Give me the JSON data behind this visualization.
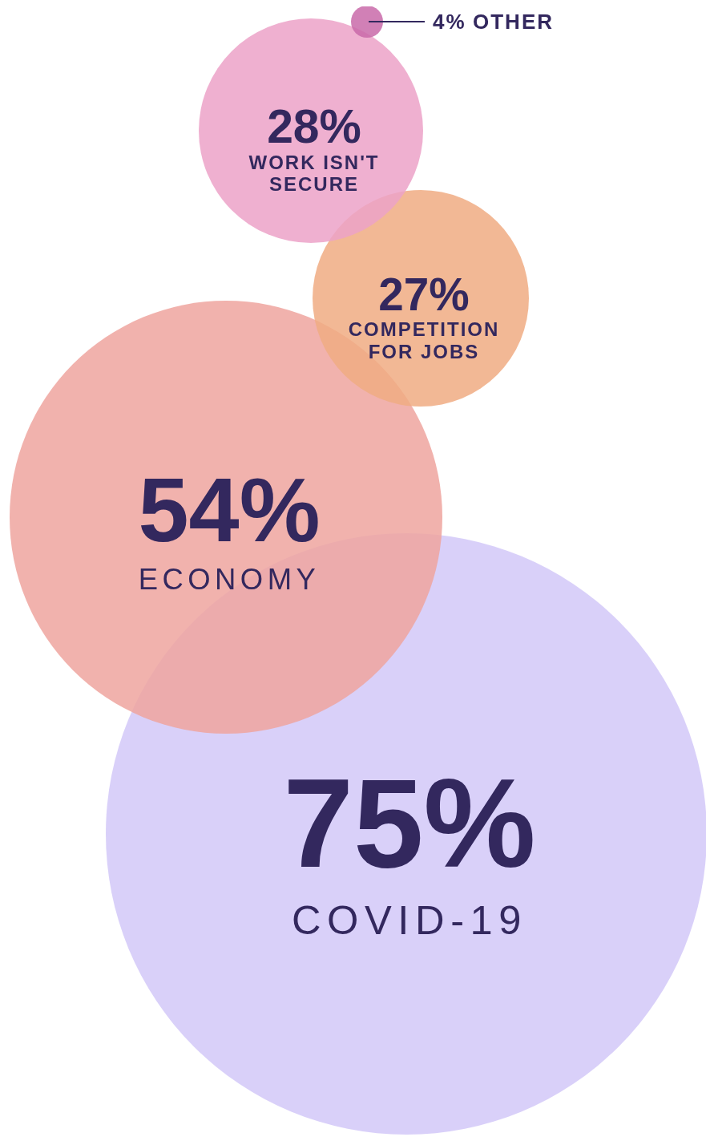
{
  "chart_data": {
    "type": "other",
    "categories": [
      "COVID-19",
      "ECONOMY",
      "COMPETITION FOR JOBS",
      "WORK ISN'T SECURE",
      "OTHER"
    ],
    "values": [
      75,
      54,
      27,
      28,
      4
    ],
    "value_labels": [
      "75%",
      "54%",
      "27%",
      "28%",
      "4%"
    ],
    "colors": [
      "#d2c8f8",
      "#eea49f",
      "#f0ab83",
      "#eca2c8",
      "#c96aa9"
    ]
  }
}
